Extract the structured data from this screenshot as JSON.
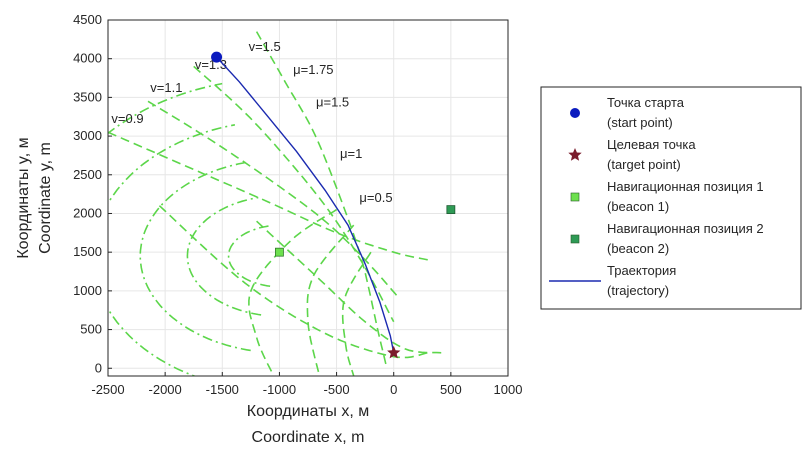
{
  "chart_data": {
    "type": "scatter",
    "xlabel_lines": [
      "Координаты x, м",
      "Coordinate x, m"
    ],
    "ylabel_lines": [
      "Координаты y, м",
      "Coordinate y, m"
    ],
    "xlim": [
      -2500,
      1000
    ],
    "ylim": [
      -100,
      4500
    ],
    "xticks": [
      -2500,
      -2000,
      -1500,
      -1000,
      -500,
      0,
      500,
      1000
    ],
    "yticks": [
      0,
      500,
      1000,
      1500,
      2000,
      2500,
      3000,
      3500,
      4000,
      4500
    ],
    "grid": true,
    "legend_position": "right-outside",
    "points": {
      "start": {
        "x": -1550,
        "y": 4020
      },
      "target": {
        "x": 0,
        "y": 200
      },
      "beacon1": {
        "x": -1000,
        "y": 1500
      },
      "beacon2": {
        "x": 500,
        "y": 2050
      }
    },
    "trajectory": {
      "x": [
        -1550,
        -1350,
        -1100,
        -850,
        -600,
        -400,
        -250,
        -120,
        -30,
        0
      ],
      "y": [
        4020,
        3700,
        3250,
        2800,
        2300,
        1850,
        1350,
        850,
        420,
        200
      ]
    },
    "mu_labels": [
      {
        "text": "μ=1.75",
        "x": -880,
        "y": 3800
      },
      {
        "text": "μ=1.5",
        "x": -680,
        "y": 3380
      },
      {
        "text": "μ=1",
        "x": -470,
        "y": 2720
      },
      {
        "text": "μ=0.5",
        "x": -300,
        "y": 2150
      }
    ],
    "v_labels": [
      {
        "text": "v=1.5",
        "x": -1270,
        "y": 4100
      },
      {
        "text": "v=1.3",
        "x": -1740,
        "y": 3870
      },
      {
        "text": "v=1.1",
        "x": -2130,
        "y": 3570
      },
      {
        "text": "v=0.9",
        "x": -2470,
        "y": 3170
      }
    ],
    "legend": [
      {
        "marker": "circle",
        "color": "#0b1bbf",
        "line1": "Точка старта",
        "line2": "(start point)"
      },
      {
        "marker": "star",
        "color": "#7a1c2c",
        "line1": "Целевая точка",
        "line2": "(target point)"
      },
      {
        "marker": "square",
        "color": "#6de04e",
        "line1": "Навигационная позиция 1",
        "line2": "(beacon 1)"
      },
      {
        "marker": "square",
        "color": "#2e9a55",
        "line1": "Навигационная позиция 2",
        "line2": "(beacon 2)"
      },
      {
        "marker": "line",
        "color": "#1b2ab0",
        "line1": "Траектория",
        "line2": "(trajectory)"
      }
    ],
    "colors": {
      "isoline": "#5cd64a",
      "trajectory": "#1b2ab0",
      "grid": "#e6e6e6",
      "axes": "#262626"
    }
  }
}
